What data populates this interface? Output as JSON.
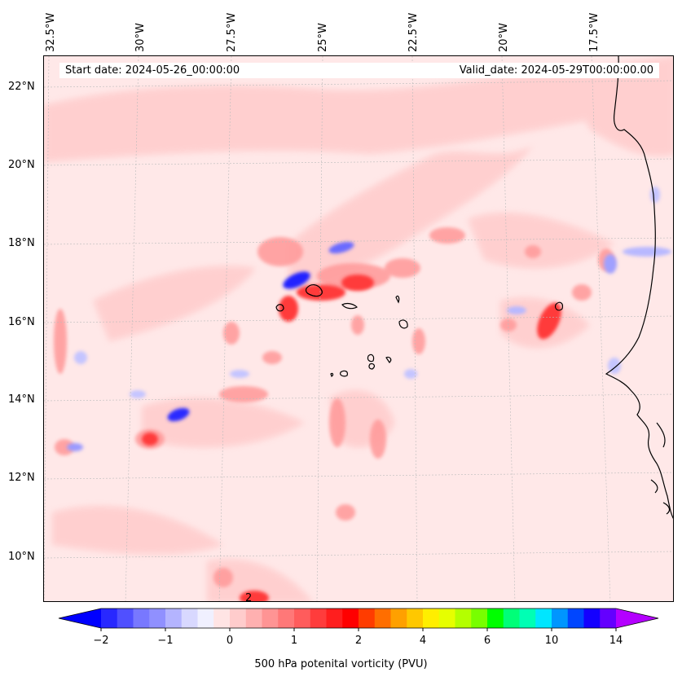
{
  "map": {
    "start_date": "Start date: 2024-05-26_00:00:00",
    "valid_date": "Valid_date: 2024-05-29T00:00:00.00",
    "lon_labels": [
      "32.5°W",
      "30°W",
      "27.5°W",
      "25°W",
      "22.5°W",
      "20°W",
      "17.5°W"
    ],
    "lat_labels": [
      "22°N",
      "20°N",
      "18°N",
      "16°N",
      "14°N",
      "12°N",
      "10°N"
    ],
    "contour_label": "2",
    "colors": {
      "background": "#ffe8e8",
      "land_outline": "#000000",
      "grid": "#bbbbbb"
    }
  },
  "colorbar": {
    "label": "500 hPa potenital vorticity (PVU)",
    "ticks": [
      "−2",
      "−1",
      "0",
      "1",
      "2",
      "4",
      "6",
      "10",
      "14"
    ],
    "extend": "both",
    "colors": [
      "#0000ff",
      "#2828ff",
      "#5050ff",
      "#7878ff",
      "#9090ff",
      "#b4b4ff",
      "#d8d8ff",
      "#f0f0ff",
      "#ffe4e4",
      "#ffcccc",
      "#ffb0b0",
      "#ff9494",
      "#ff7878",
      "#ff5c5c",
      "#ff3c3c",
      "#ff1e1e",
      "#ff0000",
      "#ff3c00",
      "#ff6e00",
      "#ffa000",
      "#ffc800",
      "#ffee00",
      "#e6ff00",
      "#b4ff00",
      "#78ff00",
      "#00ff00",
      "#00ff78",
      "#00ffb4",
      "#00e6ff",
      "#0096ff",
      "#0046ff",
      "#1400ff",
      "#6400ff",
      "#b400ff"
    ]
  }
}
